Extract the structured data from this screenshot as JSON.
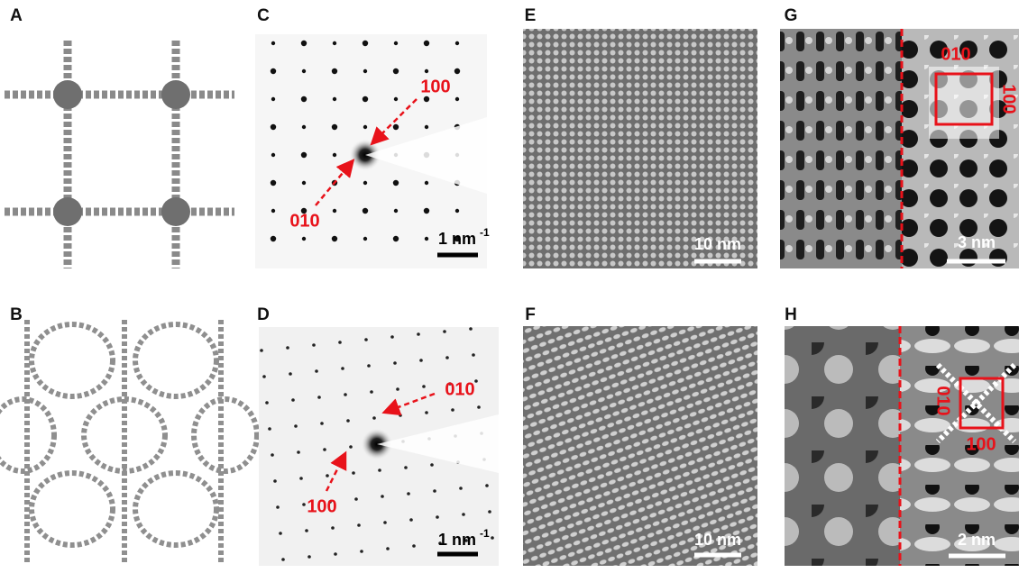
{
  "panels": [
    {
      "label": "A"
    },
    {
      "label": "B"
    },
    {
      "label": "C",
      "annotations": [
        "100",
        "010"
      ],
      "scale_bar": {
        "text": "1 nm",
        "superscript": "-1"
      }
    },
    {
      "label": "D",
      "annotations": [
        "010",
        "100"
      ],
      "scale_bar": {
        "text": "1 nm",
        "superscript": "-1"
      }
    },
    {
      "label": "E",
      "scale_bar": {
        "text": "10 nm"
      }
    },
    {
      "label": "F",
      "scale_bar": {
        "text": "10 nm"
      }
    },
    {
      "label": "G",
      "annotations": [
        "010",
        "100"
      ],
      "scale_bar": {
        "text": "3 nm"
      }
    },
    {
      "label": "H",
      "annotations": [
        "010",
        "100"
      ],
      "scale_bar": {
        "text": "2 nm"
      }
    }
  ]
}
